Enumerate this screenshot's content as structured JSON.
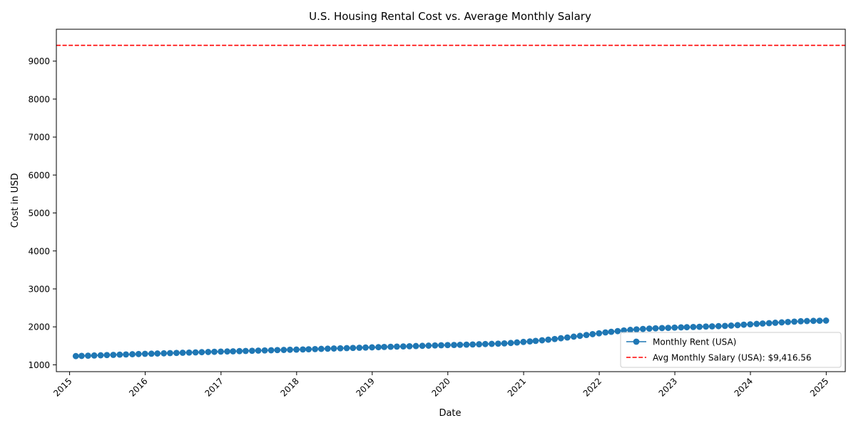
{
  "chart_data": {
    "type": "line",
    "title": "U.S. Housing Rental Cost vs. Average Monthly Salary",
    "xlabel": "Date",
    "ylabel": "Cost in USD",
    "xlim": [
      "2014-10-29",
      "2025-04-03"
    ],
    "ylim": [
      820,
      9840
    ],
    "x_ticks": [
      "2015",
      "2016",
      "2017",
      "2018",
      "2019",
      "2020",
      "2021",
      "2022",
      "2023",
      "2024",
      "2025"
    ],
    "y_ticks": [
      1000,
      2000,
      3000,
      4000,
      5000,
      6000,
      7000,
      8000,
      9000
    ],
    "grid": false,
    "legend_position": "lower-right",
    "series": [
      {
        "name": "Monthly Rent (USA)",
        "style": "line-with-markers",
        "color": "#1f77b4",
        "x_start": "2015-01-31",
        "frequency": "monthly",
        "values": [
          1230,
          1235,
          1240,
          1246,
          1251,
          1257,
          1262,
          1268,
          1273,
          1279,
          1284,
          1290,
          1293,
          1298,
          1303,
          1308,
          1313,
          1318,
          1323,
          1328,
          1333,
          1338,
          1343,
          1348,
          1352,
          1356,
          1361,
          1365,
          1370,
          1374,
          1379,
          1383,
          1388,
          1392,
          1397,
          1401,
          1405,
          1410,
          1415,
          1420,
          1425,
          1430,
          1435,
          1440,
          1445,
          1450,
          1455,
          1460,
          1465,
          1470,
          1475,
          1480,
          1485,
          1490,
          1495,
          1500,
          1505,
          1510,
          1515,
          1520,
          1523,
          1527,
          1532,
          1537,
          1542,
          1547,
          1552,
          1557,
          1564,
          1575,
          1589,
          1603,
          1616,
          1630,
          1646,
          1662,
          1680,
          1700,
          1720,
          1742,
          1763,
          1785,
          1808,
          1830,
          1853,
          1870,
          1888,
          1905,
          1920,
          1933,
          1945,
          1955,
          1962,
          1968,
          1974,
          1980,
          1986,
          1991,
          1997,
          2002,
          2008,
          2013,
          2019,
          2025,
          2033,
          2045,
          2057,
          2068,
          2078,
          2088,
          2098,
          2108,
          2118,
          2128,
          2138,
          2148,
          2153,
          2158,
          2162,
          2165
        ]
      },
      {
        "name": "Avg Monthly Salary (USA): $9,416.56",
        "style": "dashed-horizontal",
        "color": "#ff0000",
        "value": 9416.56
      }
    ]
  }
}
